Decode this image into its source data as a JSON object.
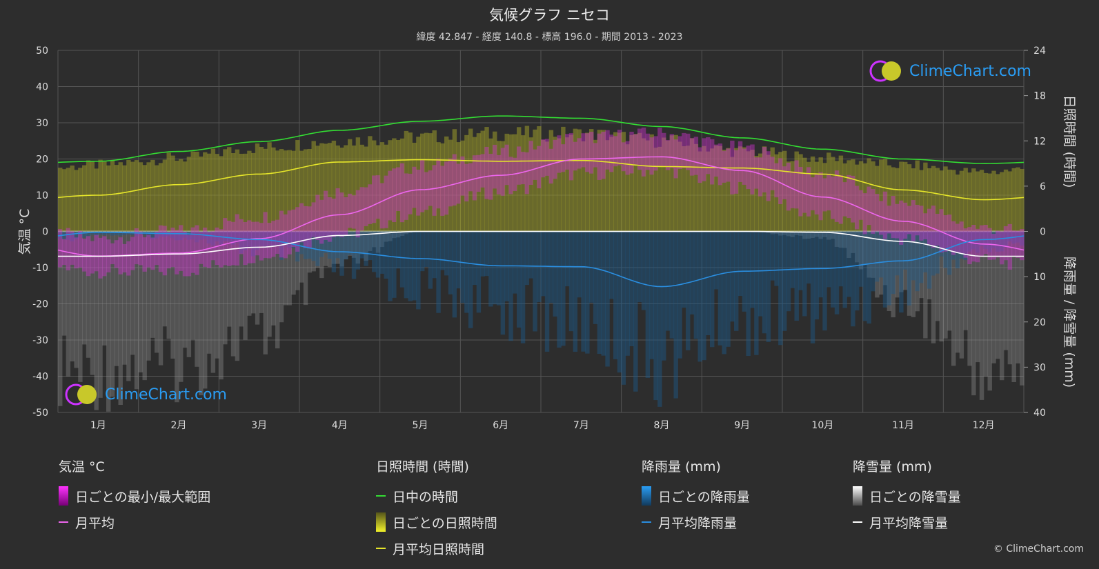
{
  "header": {
    "title": "気候グラフ ニセコ",
    "subtitle": "緯度 42.847 - 経度 140.8 - 標高 196.0 - 期間 2013 - 2023"
  },
  "axes": {
    "left_label": "気温 °C",
    "right_top_label": "日照時間 (時間)",
    "right_bottom_label": "降雨量 / 降雪量 (mm)"
  },
  "legend": {
    "temperature": {
      "title": "気温 °C",
      "range": "日ごとの最小/最大範囲",
      "avg": "月平均"
    },
    "sunshine": {
      "title": "日照時間 (時間)",
      "daylight": "日中の時間",
      "daily": "日ごとの日照時間",
      "avg": "月平均日照時間"
    },
    "rain": {
      "title": "降雨量 (mm)",
      "daily": "日ごとの降雨量",
      "avg": "月平均降雨量"
    },
    "snow": {
      "title": "降雪量 (mm)",
      "daily": "日ごとの降雪量",
      "avg": "月平均降雪量"
    }
  },
  "branding": {
    "logo_text": "ClimeChart.com",
    "copyright": "© ClimeChart.com"
  },
  "colors": {
    "background": "#2d2d2d",
    "grid": "#555555",
    "daylight": "#33dd33",
    "sunshine_avg": "#e6e62a",
    "sunshine_bar": "#9a9a2a",
    "temp_avg": "#ee66ee",
    "temp_range": "#cc33cc",
    "rain_avg": "#2a8ee0",
    "rain_bar": "#1d5a8c",
    "snow_avg": "#ffffff",
    "snow_bar": "#9a9a9a",
    "logo": "#2a9df4"
  },
  "chart_data": {
    "type": "line",
    "categories": [
      "1月",
      "2月",
      "3月",
      "4月",
      "5月",
      "6月",
      "7月",
      "8月",
      "9月",
      "10月",
      "11月",
      "12月"
    ],
    "temp_axis": {
      "ylim": [
        -50,
        50
      ],
      "ticks": [
        50,
        40,
        30,
        20,
        10,
        0,
        -10,
        -20,
        -30,
        -40,
        -50
      ]
    },
    "sun_axis": {
      "ylim": [
        0,
        24
      ],
      "ticks": [
        24,
        18,
        12,
        6,
        0
      ]
    },
    "precip_axis": {
      "ylim": [
        0,
        40
      ],
      "ticks": [
        0,
        10,
        20,
        30,
        40
      ]
    },
    "series": [
      {
        "name": "日中の時間",
        "axis": "sun",
        "values": [
          9.3,
          10.6,
          11.9,
          13.4,
          14.6,
          15.3,
          15.0,
          13.9,
          12.4,
          10.9,
          9.6,
          9.0
        ]
      },
      {
        "name": "月平均日照時間",
        "axis": "sun",
        "values": [
          4.8,
          6.2,
          7.6,
          9.2,
          9.5,
          9.3,
          9.4,
          8.6,
          8.4,
          7.6,
          5.5,
          4.2
        ]
      },
      {
        "name": "月平均",
        "axis": "temp",
        "values": [
          -6.8,
          -6.0,
          -2.0,
          4.6,
          11.5,
          15.5,
          20.0,
          20.6,
          16.8,
          9.5,
          2.8,
          -3.5
        ]
      },
      {
        "name": "月平均降雨量",
        "axis": "precip",
        "values": [
          0.2,
          0.5,
          1.8,
          4.5,
          6.0,
          7.6,
          7.8,
          12.2,
          8.8,
          8.2,
          6.5,
          1.8
        ]
      },
      {
        "name": "月平均降雪量",
        "axis": "precip",
        "values": [
          5.5,
          5.0,
          3.5,
          0.9,
          0.0,
          0.0,
          0.0,
          0.0,
          0.0,
          0.2,
          2.2,
          5.5
        ]
      }
    ],
    "daily_ranges": {
      "temp_max": [
        -2,
        0,
        4,
        11,
        18,
        22,
        26,
        27,
        23,
        16,
        8,
        1
      ],
      "temp_min": [
        -11,
        -11,
        -7,
        -1,
        5,
        11,
        16,
        17,
        12,
        4,
        -2,
        -8
      ],
      "sunshine_max": [
        9.5,
        10.5,
        12.0,
        13.0,
        13.5,
        14.0,
        14.0,
        13.0,
        11.5,
        10.5,
        9.5,
        8.5
      ],
      "rain_max": [
        1,
        2,
        6,
        12,
        18,
        24,
        30,
        40,
        28,
        25,
        18,
        6
      ],
      "snow_max": [
        40,
        38,
        30,
        10,
        0,
        0,
        0,
        0,
        0,
        2,
        20,
        40
      ]
    }
  }
}
